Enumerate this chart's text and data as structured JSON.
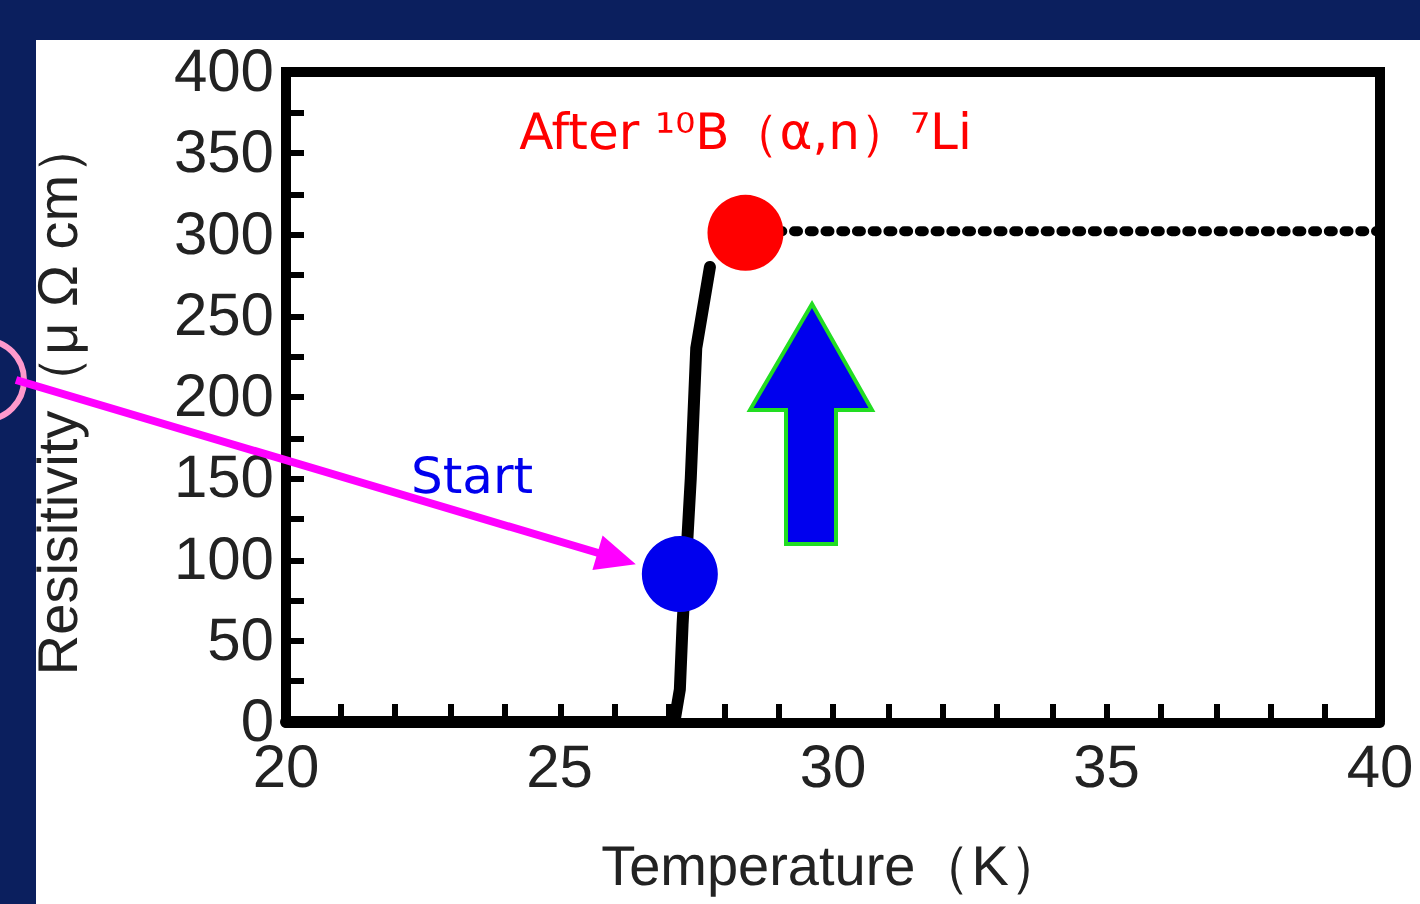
{
  "chart_data": {
    "type": "line",
    "xlabel": "Temperature（K）",
    "ylabel": "Resisitivity（μ Ω cm）",
    "xlim": [
      20,
      40
    ],
    "ylim": [
      0,
      400
    ],
    "xticks": [
      20,
      {
        "value": 21,
        "label": null
      },
      {
        "value": 22,
        "label": null
      },
      {
        "value": 23,
        "label": null
      },
      {
        "value": 24,
        "label": null
      },
      25,
      {
        "value": 26,
        "label": null
      },
      {
        "value": 27,
        "label": null
      },
      {
        "value": 28,
        "label": null
      },
      {
        "value": 29,
        "label": null
      },
      30,
      {
        "value": 31,
        "label": null
      },
      {
        "value": 32,
        "label": null
      },
      {
        "value": 33,
        "label": null
      },
      {
        "value": 34,
        "label": null
      },
      35,
      {
        "value": 36,
        "label": null
      },
      {
        "value": 37,
        "label": null
      },
      {
        "value": 38,
        "label": null
      },
      {
        "value": 39,
        "label": null
      },
      40
    ],
    "yticks": [
      0,
      {
        "value": 25,
        "label": null
      },
      50,
      {
        "value": 75,
        "label": null
      },
      100,
      {
        "value": 125,
        "label": null
      },
      150,
      {
        "value": 175,
        "label": null
      },
      200,
      {
        "value": 225,
        "label": null
      },
      250,
      {
        "value": 275,
        "label": null
      },
      300,
      {
        "value": 325,
        "label": null
      },
      350,
      {
        "value": 375,
        "label": null
      },
      400
    ],
    "grid": false,
    "series": [
      {
        "type": "line",
        "color": "#000000",
        "line_style": "solid",
        "marker": "none",
        "x": [
          20,
          27.1,
          27.2,
          27.25,
          27.4,
          27.5,
          27.75
        ],
        "values": [
          0,
          0,
          20,
          60,
          150,
          230,
          280
        ]
      },
      {
        "type": "line",
        "color": "#000000",
        "line_style": "dotted",
        "marker": "none",
        "x": [
          29.0,
          40
        ],
        "values": [
          302,
          302
        ]
      },
      {
        "type": "scatter",
        "color": "#0000ee",
        "marker": "circle",
        "x": [
          27.2
        ],
        "values": [
          91
        ]
      },
      {
        "type": "scatter",
        "color": "#ff0000",
        "marker": "circle",
        "x": [
          28.4
        ],
        "values": [
          301
        ]
      }
    ],
    "annotations": [
      {
        "text": "After ¹⁰B（α,n）⁷Li",
        "x": 28.4,
        "y": 301
      },
      "Start"
    ]
  }
}
